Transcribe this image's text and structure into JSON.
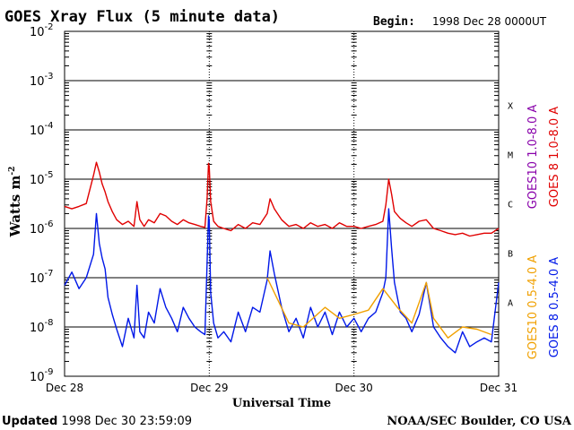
{
  "header": {
    "title": "GOES Xray Flux (5 minute data)",
    "begin_label": "Begin:",
    "begin_value": "1998 Dec 28 0000UT"
  },
  "footer": {
    "updated_label": "Updated",
    "updated_value": "1998 Dec 30 23:59:09",
    "credit": "NOAA/SEC Boulder, CO USA"
  },
  "colors": {
    "goes8_long": "#e00000",
    "goes10_long": "#8800aa",
    "goes8_short": "#0018e8",
    "goes10_short": "#f0a000",
    "grid": "#000000"
  },
  "chart_data": {
    "type": "line",
    "title": "GOES Xray Flux (5 minute data)",
    "xlabel": "Universal Time",
    "ylabel": "Watts m",
    "ylabel_exp": "-2",
    "yscale": "log",
    "ylim_exp": [
      -9,
      -2
    ],
    "y_ticks": [
      {
        "exp": -9,
        "mantissa": "10",
        "sup": "-9"
      },
      {
        "exp": -8,
        "mantissa": "10",
        "sup": "-8"
      },
      {
        "exp": -7,
        "mantissa": "10",
        "sup": "-7"
      },
      {
        "exp": -6,
        "mantissa": "10",
        "sup": "-6"
      },
      {
        "exp": -5,
        "mantissa": "10",
        "sup": "-5"
      },
      {
        "exp": -4,
        "mantissa": "10",
        "sup": "-4"
      },
      {
        "exp": -3,
        "mantissa": "10",
        "sup": "-3"
      },
      {
        "exp": -2,
        "mantissa": "10",
        "sup": "-2"
      }
    ],
    "x_range_days": [
      0,
      3
    ],
    "x_ticks": [
      {
        "day": 0,
        "label": "Dec 28"
      },
      {
        "day": 1,
        "label": "Dec 29"
      },
      {
        "day": 2,
        "label": "Dec 30"
      },
      {
        "day": 3,
        "label": "Dec 31"
      }
    ],
    "flare_classes": [
      {
        "label": "A",
        "exp": -7.5
      },
      {
        "label": "B",
        "exp": -6.5
      },
      {
        "label": "C",
        "exp": -5.5
      },
      {
        "label": "M",
        "exp": -4.5
      },
      {
        "label": "X",
        "exp": -3.5
      }
    ],
    "grid": true,
    "legend": [
      {
        "text": "GOES 8 1.0-8.0 A",
        "color": "#e00000"
      },
      {
        "text": "GOES10 1.0-8.0 A",
        "color": "#8800aa"
      },
      {
        "text": "GOES 8 0.5-4.0 A",
        "color": "#0018e8"
      },
      {
        "text": "GOES10 0.5-4.0 A",
        "color": "#f0a000"
      }
    ],
    "series": [
      {
        "name": "GOES 8 1.0-8.0 A",
        "color": "#e00000",
        "x": [
          0,
          0.05,
          0.1,
          0.15,
          0.2,
          0.22,
          0.24,
          0.26,
          0.28,
          0.3,
          0.33,
          0.36,
          0.4,
          0.44,
          0.48,
          0.5,
          0.52,
          0.55,
          0.58,
          0.62,
          0.66,
          0.7,
          0.74,
          0.78,
          0.82,
          0.86,
          0.9,
          0.94,
          0.97,
          0.985,
          0.995,
          1.0,
          1.01,
          1.03,
          1.06,
          1.1,
          1.15,
          1.2,
          1.25,
          1.3,
          1.35,
          1.4,
          1.42,
          1.45,
          1.5,
          1.55,
          1.6,
          1.65,
          1.7,
          1.75,
          1.8,
          1.85,
          1.9,
          1.95,
          2.0,
          2.05,
          2.1,
          2.15,
          2.2,
          2.22,
          2.24,
          2.26,
          2.28,
          2.32,
          2.36,
          2.4,
          2.45,
          2.5,
          2.55,
          2.6,
          2.65,
          2.7,
          2.75,
          2.8,
          2.85,
          2.9,
          2.95,
          3.0
        ],
        "y": [
          2.8e-06,
          2.5e-06,
          2.8e-06,
          3.2e-06,
          1.2e-05,
          2.2e-05,
          1.4e-05,
          8e-06,
          5.5e-06,
          3.5e-06,
          2.2e-06,
          1.5e-06,
          1.2e-06,
          1.4e-06,
          1.1e-06,
          3.5e-06,
          1.5e-06,
          1.1e-06,
          1.5e-06,
          1.3e-06,
          2e-06,
          1.8e-06,
          1.4e-06,
          1.2e-06,
          1.5e-06,
          1.3e-06,
          1.2e-06,
          1.1e-06,
          1.05e-06,
          4e-06,
          2.1e-05,
          1.8e-05,
          3.5e-06,
          1.4e-06,
          1.1e-06,
          1e-06,
          9e-07,
          1.2e-06,
          1e-06,
          1.3e-06,
          1.2e-06,
          2e-06,
          4e-06,
          2.5e-06,
          1.5e-06,
          1.1e-06,
          1.2e-06,
          1e-06,
          1.3e-06,
          1.1e-06,
          1.2e-06,
          1e-06,
          1.3e-06,
          1.1e-06,
          1.1e-06,
          1e-06,
          1.1e-06,
          1.2e-06,
          1.4e-06,
          3e-06,
          1e-05,
          5e-06,
          2.2e-06,
          1.6e-06,
          1.3e-06,
          1.1e-06,
          1.4e-06,
          1.5e-06,
          1e-06,
          9e-07,
          8e-07,
          7.5e-07,
          8e-07,
          7e-07,
          7.5e-07,
          8e-07,
          8e-07,
          1e-06
        ]
      },
      {
        "name": "GOES 8 0.5-4.0 A",
        "color": "#0018e8",
        "x": [
          0,
          0.05,
          0.1,
          0.15,
          0.2,
          0.22,
          0.24,
          0.26,
          0.28,
          0.3,
          0.33,
          0.36,
          0.4,
          0.44,
          0.48,
          0.5,
          0.52,
          0.55,
          0.58,
          0.62,
          0.66,
          0.7,
          0.74,
          0.78,
          0.82,
          0.86,
          0.9,
          0.94,
          0.97,
          0.985,
          0.995,
          1.0,
          1.01,
          1.03,
          1.06,
          1.1,
          1.15,
          1.2,
          1.25,
          1.3,
          1.35,
          1.4,
          1.42,
          1.45,
          1.5,
          1.55,
          1.6,
          1.65,
          1.7,
          1.75,
          1.8,
          1.85,
          1.9,
          1.95,
          2.0,
          2.05,
          2.1,
          2.15,
          2.2,
          2.22,
          2.24,
          2.26,
          2.28,
          2.32,
          2.36,
          2.4,
          2.45,
          2.5,
          2.55,
          2.6,
          2.65,
          2.7,
          2.75,
          2.8,
          2.85,
          2.9,
          2.95,
          3.0
        ],
        "y": [
          7e-08,
          1.3e-07,
          6e-08,
          1e-07,
          3e-07,
          2e-06,
          5e-07,
          2.5e-07,
          1.5e-07,
          4e-08,
          1.8e-08,
          9e-09,
          4e-09,
          1.5e-08,
          6e-09,
          7e-08,
          8e-09,
          6e-09,
          2e-08,
          1.2e-08,
          6e-08,
          2.5e-08,
          1.5e-08,
          8e-09,
          2.5e-08,
          1.5e-08,
          1e-08,
          8e-09,
          7e-09,
          2e-07,
          1.8e-06,
          1.5e-06,
          5e-08,
          1.2e-08,
          6e-09,
          8e-09,
          5e-09,
          2e-08,
          8e-09,
          2.5e-08,
          2e-08,
          9e-08,
          3.5e-07,
          1.2e-07,
          2.5e-08,
          8e-09,
          1.5e-08,
          6e-09,
          2.5e-08,
          1e-08,
          2e-08,
          7e-09,
          2e-08,
          1e-08,
          1.5e-08,
          8e-09,
          1.5e-08,
          2e-08,
          5e-08,
          1e-07,
          2.5e-06,
          4e-07,
          8e-08,
          2e-08,
          1.5e-08,
          8e-09,
          1.8e-08,
          8e-08,
          1e-08,
          6e-09,
          4e-09,
          3e-09,
          8e-09,
          4e-09,
          5e-09,
          6e-09,
          5e-09,
          8e-08
        ]
      },
      {
        "name": "GOES10 0.5-4.0 A",
        "color": "#f0a000",
        "x": [
          1.4,
          1.55,
          1.65,
          1.8,
          1.9,
          2.0,
          2.1,
          2.2,
          2.3,
          2.4,
          2.5,
          2.55,
          2.65,
          2.75,
          2.85,
          2.95
        ],
        "y": [
          1e-07,
          1.2e-08,
          1e-08,
          2.5e-08,
          1.5e-08,
          1.8e-08,
          2.2e-08,
          6e-08,
          2.5e-08,
          1.2e-08,
          8e-08,
          1.5e-08,
          6e-09,
          1e-08,
          9e-09,
          7e-09
        ]
      }
    ]
  }
}
